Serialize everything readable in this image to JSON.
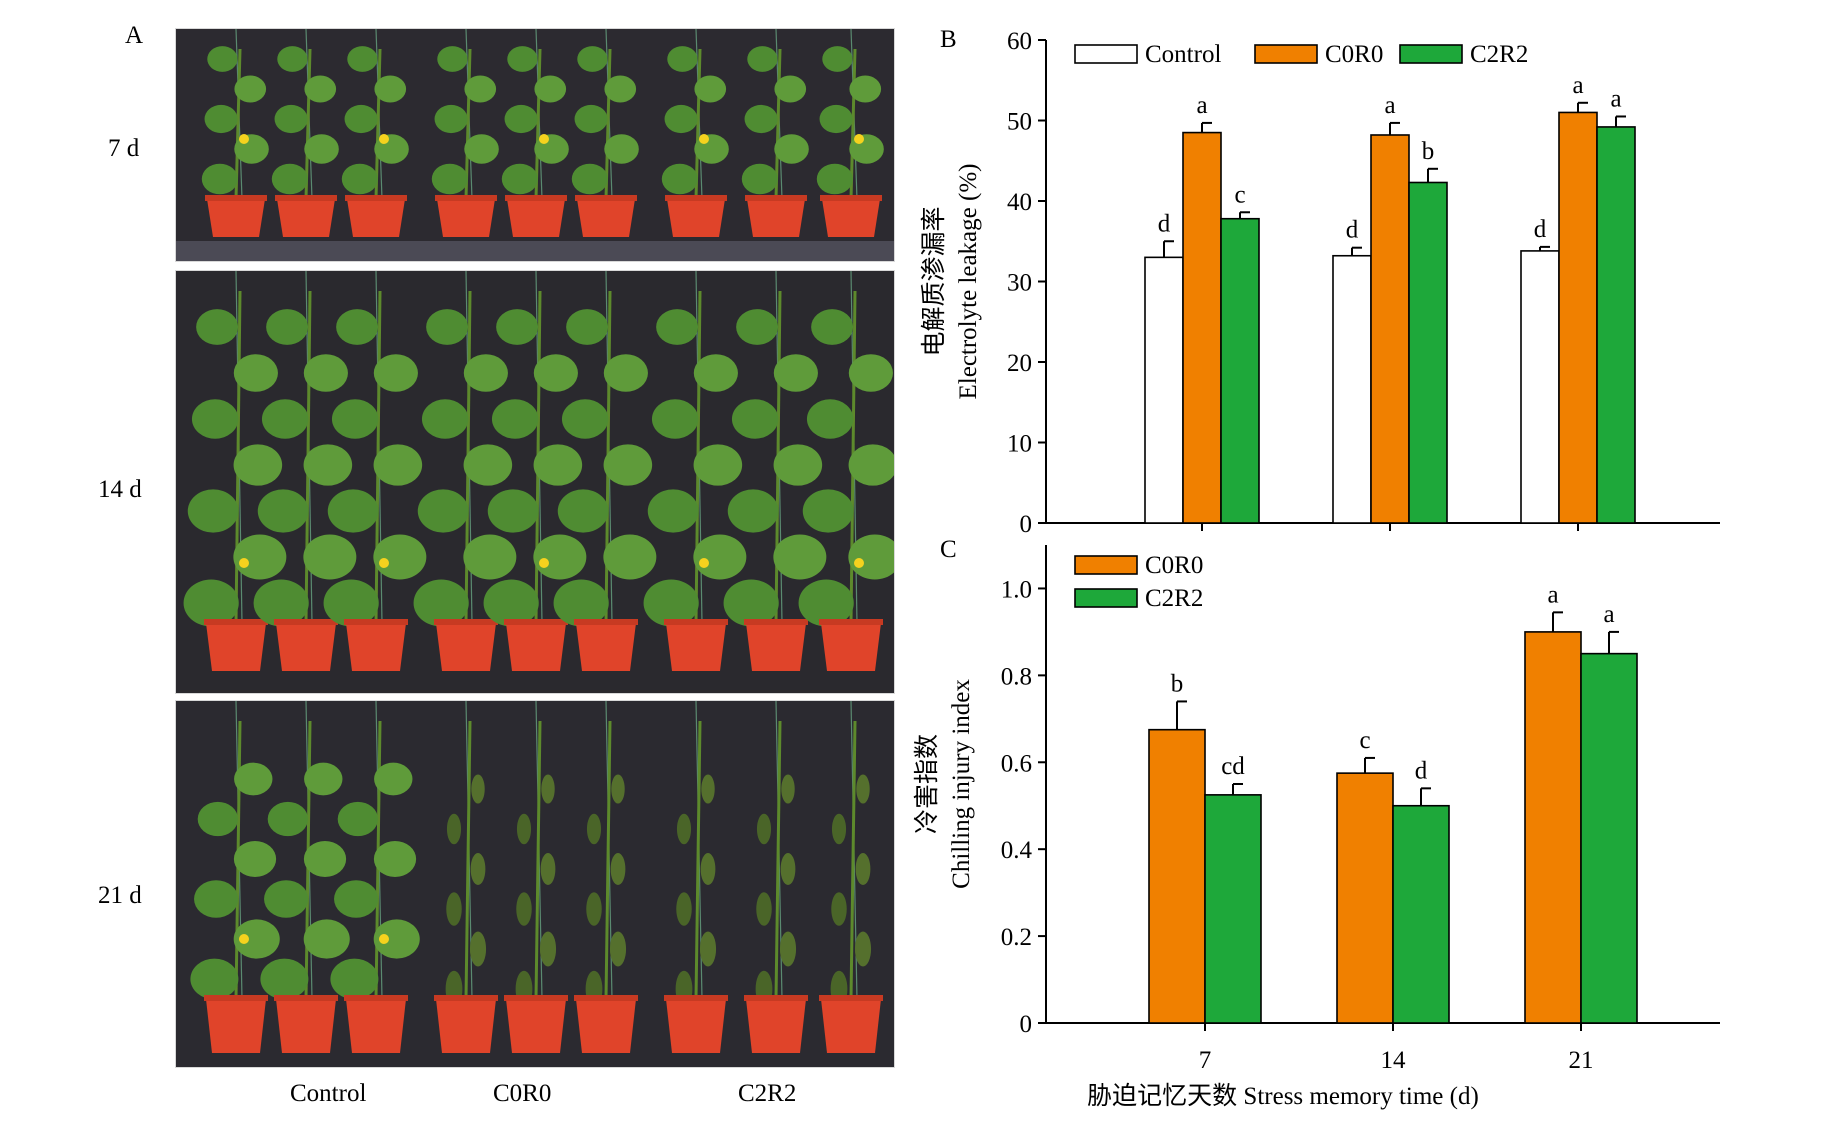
{
  "panel_a": {
    "label": "A",
    "rows": [
      "7 d",
      "14 d",
      "21 d"
    ],
    "groups": [
      "Control",
      "C0R0",
      "C2R2"
    ]
  },
  "chart_data": [
    {
      "panel": "B",
      "type": "bar",
      "categories": [
        "7",
        "14",
        "21"
      ],
      "series": [
        {
          "name": "Control",
          "color": "#ffffff",
          "values": [
            33.0,
            33.2,
            33.8
          ],
          "errors": [
            2.0,
            1.0,
            0.5
          ],
          "letters": [
            "d",
            "d",
            "d"
          ]
        },
        {
          "name": "C0R0",
          "color": "#f08000",
          "values": [
            48.5,
            48.2,
            51.0
          ],
          "errors": [
            1.2,
            1.5,
            1.2
          ],
          "letters": [
            "a",
            "a",
            "a"
          ]
        },
        {
          "name": "C2R2",
          "color": "#1ea83a",
          "values": [
            37.8,
            42.3,
            49.2
          ],
          "errors": [
            0.8,
            1.7,
            1.3
          ],
          "letters": [
            "c",
            "b",
            "a"
          ]
        }
      ],
      "ylabel_cn": "电解质渗漏率",
      "ylabel_en": "Electrolyte leakage (%)",
      "ylim": [
        0,
        60
      ],
      "yticks": [
        "0",
        "10",
        "20",
        "30",
        "40",
        "50",
        "60"
      ],
      "legend": "top"
    },
    {
      "panel": "C",
      "type": "bar",
      "categories": [
        "7",
        "14",
        "21"
      ],
      "series": [
        {
          "name": "C0R0",
          "color": "#f08000",
          "values": [
            0.675,
            0.575,
            0.9
          ],
          "errors": [
            0.065,
            0.035,
            0.045
          ],
          "letters": [
            "b",
            "c",
            "a"
          ]
        },
        {
          "name": "C2R2",
          "color": "#1ea83a",
          "values": [
            0.525,
            0.5,
            0.85
          ],
          "errors": [
            0.025,
            0.04,
            0.05
          ],
          "letters": [
            "cd",
            "d",
            "a"
          ]
        }
      ],
      "ylabel_cn": "冷害指数",
      "ylabel_en": "Chilling injury index",
      "ylim": [
        0,
        1.1
      ],
      "yticks": [
        "0",
        "0.2",
        "0.4",
        "0.6",
        "0.8",
        "1.0"
      ],
      "xlabel": "胁迫记忆天数 Stress memory time (d)",
      "legend": "top-left"
    }
  ]
}
